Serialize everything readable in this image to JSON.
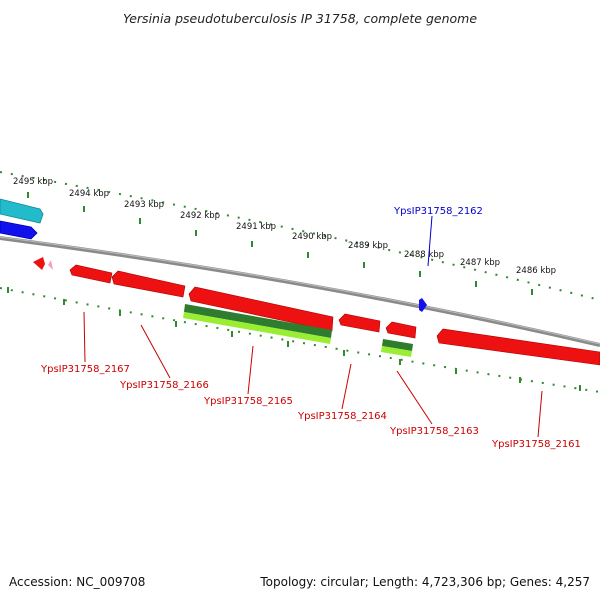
{
  "title": "Yersinia pseudotuberculosis IP 31758, complete genome",
  "footer": {
    "accession": "Accession: NC_009708",
    "topology": "Topology: circular; Length: 4,723,306 bp; Genes: 4,257"
  },
  "scale_labels": [
    "2495 kbp",
    "2494 kbp",
    "2493 kbp",
    "2492 kbp",
    "2491 kbp",
    "2490 kbp",
    "2489 kbp",
    "2488 kbp",
    "2487 kbp",
    "2486 kbp"
  ],
  "gene_labels": [
    {
      "text": "YpsIP31758_2162",
      "color": "#0000cc"
    },
    {
      "text": "YpsIP31758_2167",
      "color": "#cc0000"
    },
    {
      "text": "YpsIP31758_2166",
      "color": "#cc0000"
    },
    {
      "text": "YpsIP31758_2165",
      "color": "#cc0000"
    },
    {
      "text": "YpsIP31758_2164",
      "color": "#cc0000"
    },
    {
      "text": "YpsIP31758_2163",
      "color": "#cc0000"
    },
    {
      "text": "YpsIP31758_2161",
      "color": "#cc0000"
    }
  ],
  "colors": {
    "backbone": "#8a8a8a",
    "tick": "#2e8b2e",
    "gene_red": "#ee1111",
    "gene_blue": "#1111ee",
    "gene_cyan": "#22bbcc",
    "gene_green": "#2e7d2e",
    "gene_lime": "#99ee33",
    "gene_pink": "#ff99bb"
  }
}
